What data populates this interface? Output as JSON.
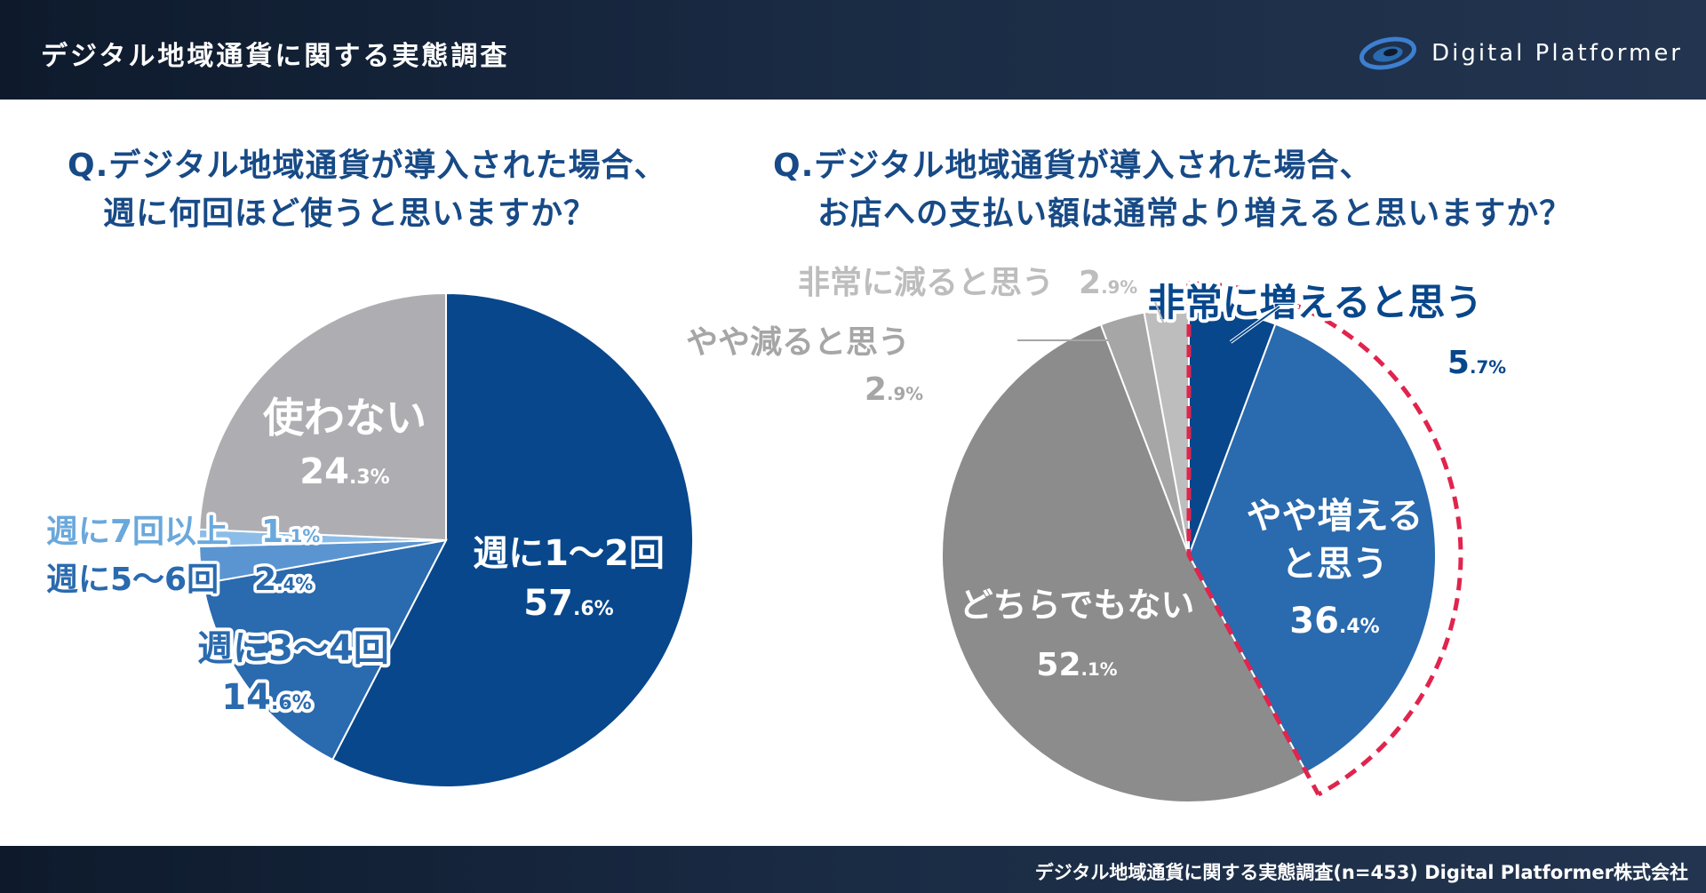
{
  "header": {
    "title": "デジタル地域通貨に関する実態調査",
    "brand": "Digital Platformer"
  },
  "footer": {
    "source": "デジタル地域通貨に関する実態調査(n=453) Digital Platformer株式会社"
  },
  "questions": {
    "q1": {
      "line1": "Q.デジタル地域通貨が導入された場合、",
      "line2": "週に何回ほど使うと思いますか？"
    },
    "q2": {
      "line1": "Q.デジタル地域通貨が導入された場合、",
      "line2": "お店への支払い額は通常より増えると思いますか？"
    }
  },
  "colors": {
    "header_bg": "#16263d",
    "question_text": "#174a86",
    "dark_blue": "#08478c",
    "mid_blue": "#2a6aae",
    "light_blue": "#6aa8dc",
    "gray": "#8c8c8c",
    "light_gray": "#aeaeb2",
    "highlight_dash": "#e0244d"
  },
  "chart_data": [
    {
      "type": "pie",
      "slices": [
        {
          "name": "週に1〜2回",
          "value": 57.6,
          "display": "57.6%",
          "color": "#08478c"
        },
        {
          "name": "週に3〜4回",
          "value": 14.6,
          "display": "14.6%",
          "color": "#2a6aae"
        },
        {
          "name": "週に5〜6回",
          "value": 2.4,
          "display": "2.4%",
          "color": "#5b95d1"
        },
        {
          "name": "週に7回以上",
          "value": 1.1,
          "display": "1.1%",
          "color": "#8cbde8"
        },
        {
          "name": "使わない",
          "value": 24.3,
          "display": "24.3%",
          "color": "#aeaeb2"
        }
      ],
      "start_angle_deg": 0,
      "direction": "clockwise"
    },
    {
      "type": "pie",
      "slices": [
        {
          "name": "非常に増えると思う",
          "value": 5.7,
          "display": "5.7%",
          "color": "#08478c"
        },
        {
          "name": "やや増えると思う",
          "value": 36.4,
          "display": "36.4%",
          "color": "#2a6aae"
        },
        {
          "name": "どちらでもない",
          "value": 52.1,
          "display": "52.1%",
          "color": "#8c8c8c"
        },
        {
          "name": "やや減ると思う",
          "value": 2.9,
          "display": "2.9%",
          "color": "#a6a6a6"
        },
        {
          "name": "非常に減ると思う",
          "value": 2.9,
          "display": "2.9%",
          "color": "#bdbdbd"
        }
      ],
      "start_angle_deg": 0,
      "direction": "clockwise",
      "highlighted": [
        "非常に増えると思う",
        "やや増えると思う"
      ]
    }
  ]
}
